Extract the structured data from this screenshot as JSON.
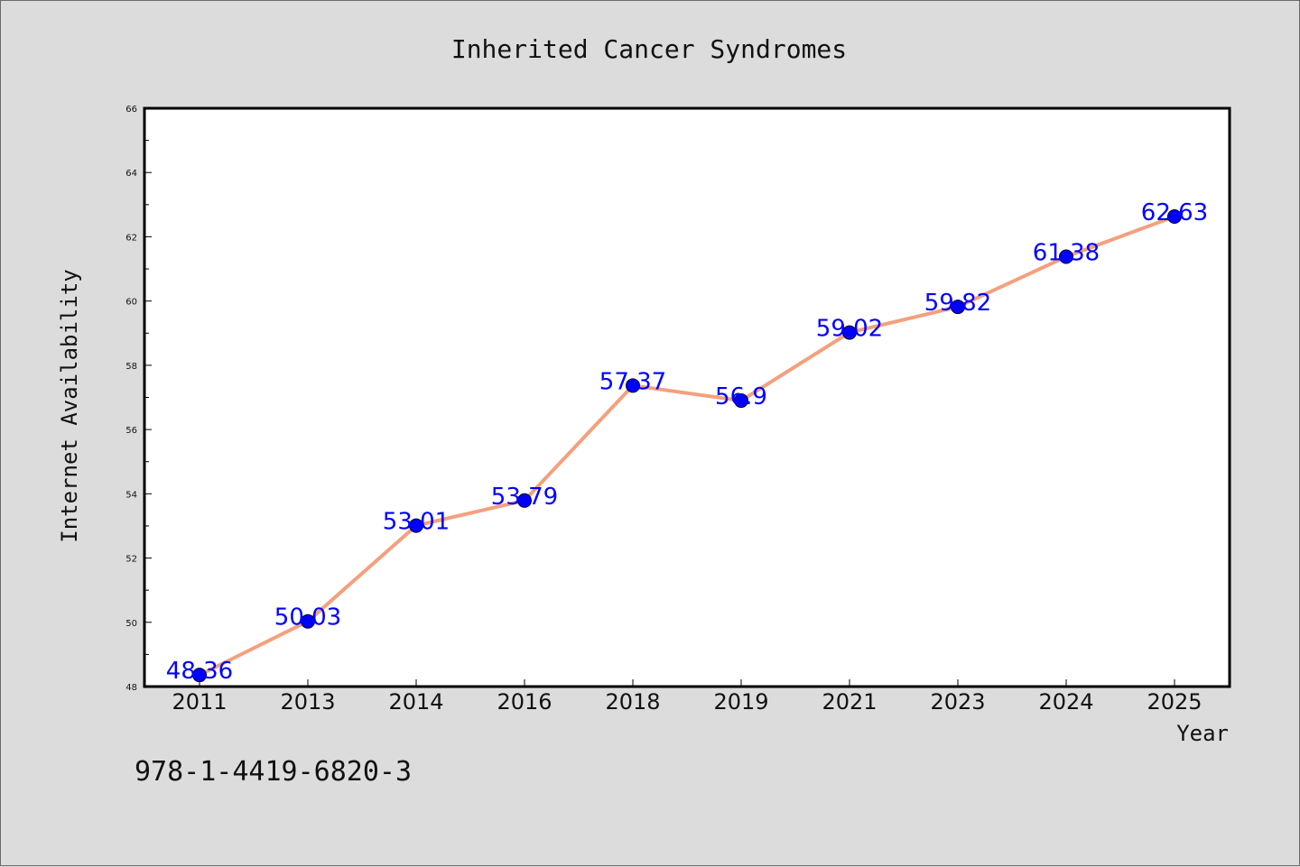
{
  "chart_data": {
    "type": "line",
    "title": "Inherited Cancer Syndromes",
    "xlabel": "Year",
    "ylabel": "Internet Availability",
    "categories": [
      "2011",
      "2013",
      "2014",
      "2016",
      "2018",
      "2019",
      "2021",
      "2023",
      "2024",
      "2025"
    ],
    "values": [
      48.36,
      50.03,
      53.01,
      53.79,
      57.37,
      56.9,
      59.02,
      59.82,
      61.38,
      62.63
    ],
    "data_labels": [
      "48.36",
      "50.03",
      "53.01",
      "53.79",
      "57.37",
      "56.9",
      "59.02",
      "59.82",
      "61.38",
      "62.63"
    ],
    "ylim": [
      48,
      66
    ],
    "yticks": [
      "48",
      "50",
      "52",
      "54",
      "56",
      "58",
      "60",
      "62",
      "64",
      "66"
    ],
    "grid": false,
    "legend": "none",
    "colors": {
      "line": "#f4a07e",
      "marker": "#0000ff",
      "data_label": "#0000ff",
      "background": "#dcdcdc",
      "plot_background": "#ffffff"
    }
  },
  "footer": {
    "isbn": "978-1-4419-6820-3"
  }
}
